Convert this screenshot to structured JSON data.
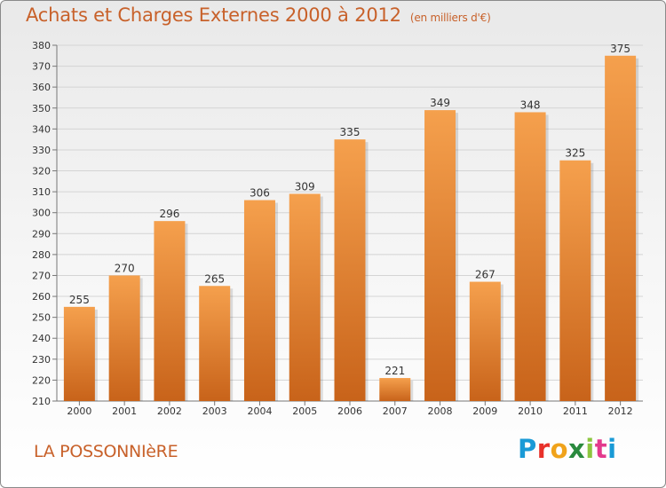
{
  "header": {
    "title": "Achats et Charges Externes 2000 à 2012",
    "subtitle": "(en milliers d'€)"
  },
  "commune": "LA POSSONNIèRE",
  "brand": {
    "text": "Proxiti",
    "colors": [
      "#1a9ad6",
      "#e8312a",
      "#f0a31b",
      "#2a8a3e",
      "#8cc63f",
      "#e33a8d",
      "#1a9ad6"
    ]
  },
  "colors": {
    "bar_light": "#f5a04d",
    "bar_dark": "#c8631a",
    "title": "#c8612a"
  },
  "chart_data": {
    "type": "bar",
    "categories": [
      "2000",
      "2001",
      "2002",
      "2003",
      "2004",
      "2005",
      "2006",
      "2007",
      "2008",
      "2009",
      "2010",
      "2011",
      "2012"
    ],
    "values": [
      255,
      270,
      296,
      265,
      306,
      309,
      335,
      221,
      349,
      267,
      348,
      325,
      375
    ],
    "ylim": [
      210,
      380
    ],
    "yticks": [
      210,
      220,
      230,
      240,
      250,
      260,
      270,
      280,
      290,
      300,
      310,
      320,
      330,
      340,
      350,
      360,
      370,
      380
    ],
    "grid": true,
    "value_labels": true
  }
}
